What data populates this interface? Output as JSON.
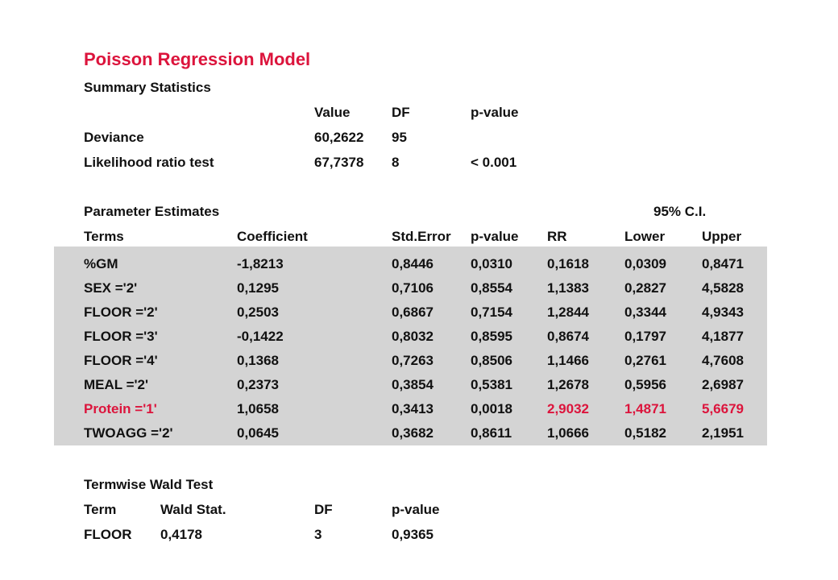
{
  "title": "Poisson Regression Model",
  "summary": {
    "heading": "Summary Statistics",
    "columns": [
      "Value",
      "DF",
      "p-value"
    ],
    "rows": [
      {
        "label": "Deviance",
        "value": "60,2622",
        "df": "95",
        "p": ""
      },
      {
        "label": "Likelihood ratio test",
        "value": "67,7378",
        "df": "8",
        "p": "< 0.001"
      }
    ]
  },
  "parameters": {
    "heading": "Parameter  Estimates",
    "ci_label": "95% C.I.",
    "columns": [
      "Terms",
      "Coefficient",
      "Std.Error",
      "p-value",
      "RR",
      "Lower",
      "Upper"
    ],
    "rows": [
      {
        "term": "%GM",
        "coef": "-1,8213",
        "se": "0,8446",
        "p": "0,0310",
        "rr": "0,1618",
        "lower": "0,0309",
        "upper": "0,8471",
        "highlight": false
      },
      {
        "term": "SEX ='2'",
        "coef": "0,1295",
        "se": "0,7106",
        "p": "0,8554",
        "rr": "1,1383",
        "lower": "0,2827",
        "upper": "4,5828",
        "highlight": false
      },
      {
        "term": "FLOOR ='2'",
        "coef": "0,2503",
        "se": "0,6867",
        "p": "0,7154",
        "rr": "1,2844",
        "lower": "0,3344",
        "upper": "4,9343",
        "highlight": false
      },
      {
        "term": "FLOOR ='3'",
        "coef": "-0,1422",
        "se": "0,8032",
        "p": "0,8595",
        "rr": "0,8674",
        "lower": "0,1797",
        "upper": "4,1877",
        "highlight": false
      },
      {
        "term": "FLOOR ='4'",
        "coef": "0,1368",
        "se": "0,7263",
        "p": "0,8506",
        "rr": "1,1466",
        "lower": "0,2761",
        "upper": "4,7608",
        "highlight": false
      },
      {
        "term": "MEAL ='2'",
        "coef": "0,2373",
        "se": "0,3854",
        "p": "0,5381",
        "rr": "1,2678",
        "lower": "0,5956",
        "upper": "2,6987",
        "highlight": false
      },
      {
        "term": "Protein ='1'",
        "coef": "1,0658",
        "se": "0,3413",
        "p": "0,0018",
        "rr": "2,9032",
        "lower": "1,4871",
        "upper": "5,6679",
        "highlight": true
      },
      {
        "term": "TWOAGG ='2'",
        "coef": "0,0645",
        "se": "0,3682",
        "p": "0,8611",
        "rr": "1,0666",
        "lower": "0,5182",
        "upper": "2,1951",
        "highlight": false
      }
    ]
  },
  "wald": {
    "heading": "Termwise Wald Test",
    "columns": [
      "Term",
      "Wald Stat.",
      "DF",
      "p-value"
    ],
    "rows": [
      {
        "term": "FLOOR",
        "stat": "0,4178",
        "df": "3",
        "p": "0,9365"
      }
    ]
  },
  "colors": {
    "accent": "#dc143c",
    "shade": "#d4d4d4",
    "text": "#111111"
  }
}
